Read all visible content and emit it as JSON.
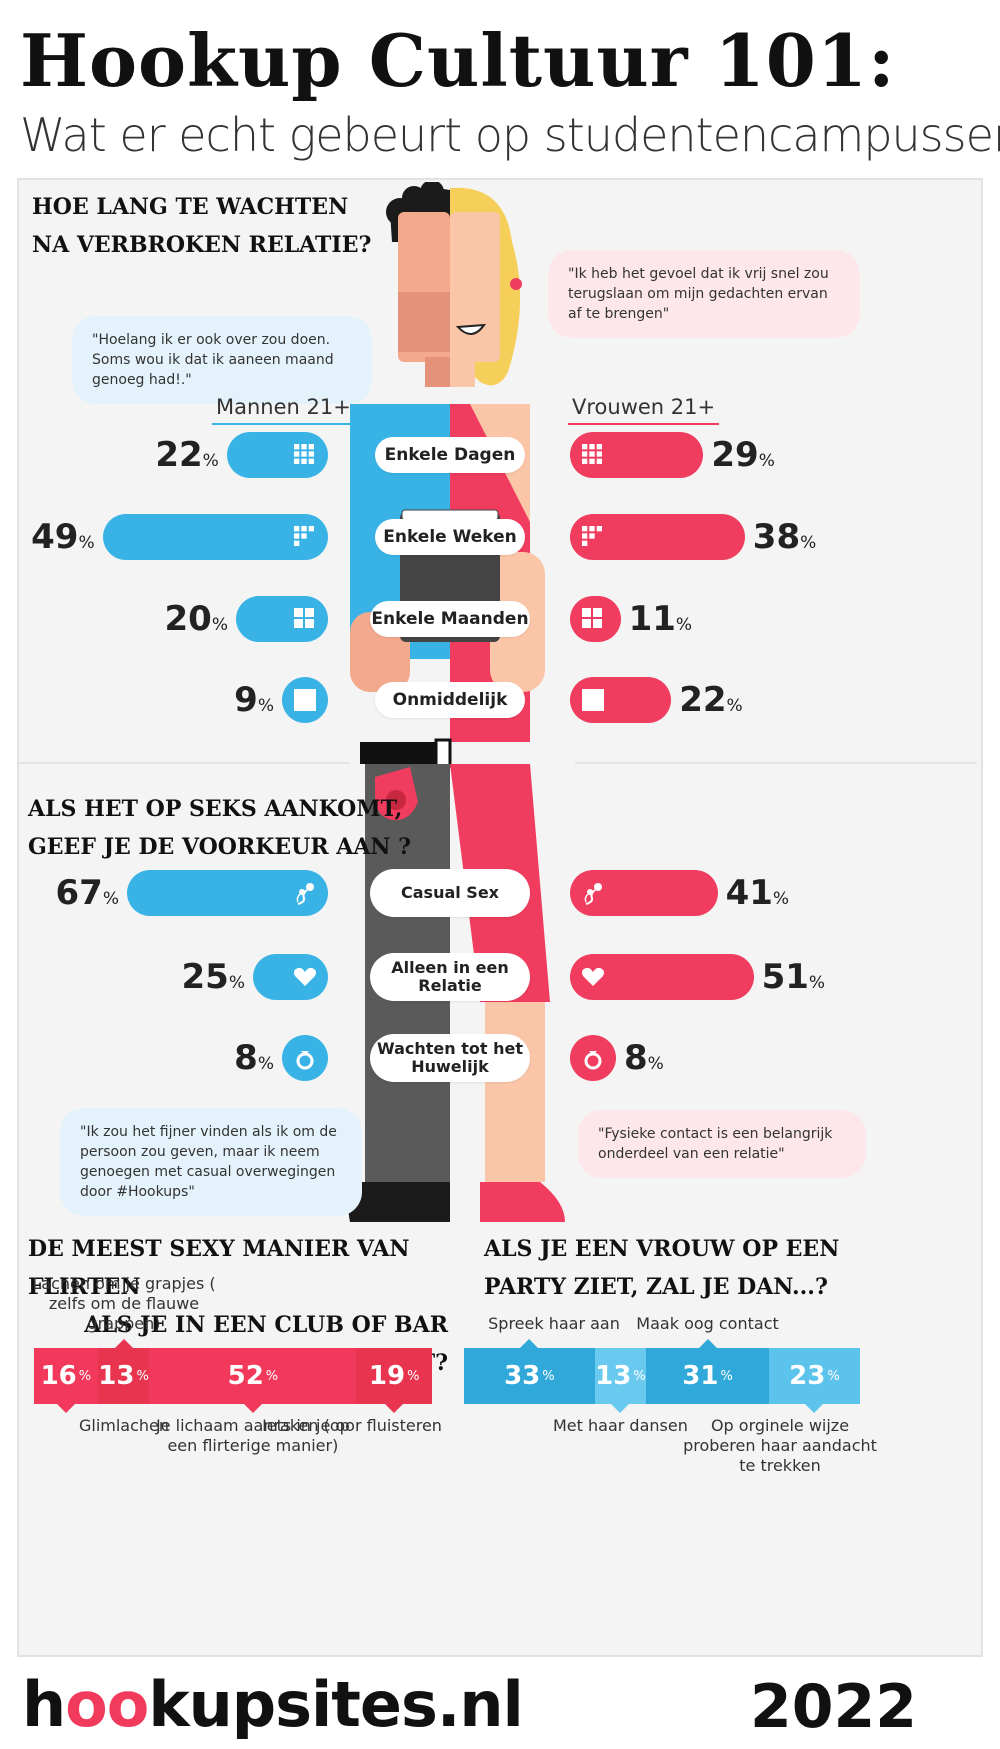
{
  "header": {
    "title": "Hookup Cultuur 101:",
    "subtitle": "Wat er echt gebeurt op studentencampussen"
  },
  "section1": {
    "title_line1": "HOE LANG TE WACHTEN",
    "title_line2": "NA VERBROKEN RELATIE?",
    "quote_men": "\"Hoelang ik er ook over zou doen. Soms wou ik dat ik aaneen maand genoeg had!.\"",
    "quote_women": "\"Ik heb het gevoel dat ik vrij snel zou terugslaan om mijn gedachten ervan af te brengen\"",
    "men_header": "Mannen 21+",
    "women_header": "Vrouwen 21+"
  },
  "section2": {
    "title_line1": "ALS HET OP SEKS AANKOMT,",
    "title_line2": "GEEF JE DE VOORKEUR AAN ?",
    "quote_men": "\"Ik zou het fijner vinden als ik om de persoon zou geven, maar ik neem genoegen met casual overwegingen door #Hookups\"",
    "quote_women": "\"Fysieke contact is een belangrijk onderdeel van een relatie\""
  },
  "section3": {
    "title_line1": "DE MEEST SEXY MANIER VAN FLIRTEN",
    "title_line2": "ALS JE IN EEN CLUB OF BAR BENT?"
  },
  "section4": {
    "title_line1": "ALS JE EEN VROUW OP EEN",
    "title_line2": "PARTY ZIET, ZAL JE DAN...?"
  },
  "percent_sign": "%",
  "footer": {
    "logo_a": "h",
    "logo_o1": "o",
    "logo_o2": "o",
    "logo_b": "kupsites.nl",
    "year": "2022"
  },
  "colors": {
    "blue": "#39b3e6",
    "pink": "#f03c5e",
    "red_stack": "#f2385b",
    "blue_stack": "#34aee0"
  },
  "chart_data": [
    {
      "type": "bar",
      "title": "HOE LANG TE WACHTEN NA VERBROKEN RELATIE?",
      "categories": [
        "Enkele Dagen",
        "Enkele Weken",
        "Enkele Maanden",
        "Onmiddelijk"
      ],
      "icons": [
        "grid-9-icon",
        "grid-partial-icon",
        "grid-4-icon",
        "square-icon"
      ],
      "series": [
        {
          "name": "Mannen 21+",
          "values": [
            22,
            49,
            20,
            9
          ]
        },
        {
          "name": "Vrouwen 21+",
          "values": [
            29,
            38,
            11,
            22
          ]
        }
      ],
      "unit": "%"
    },
    {
      "type": "bar",
      "title": "ALS HET OP SEKS AANKOMT, GEEF JE DE VOORKEUR AAN ?",
      "categories": [
        "Casual Sex",
        "Alleen in een Relatie",
        "Wachten tot het Huwelijk"
      ],
      "icons": [
        "sperm-icon",
        "heart-icon",
        "ring-icon"
      ],
      "series": [
        {
          "values": [
            67,
            25,
            8
          ]
        },
        {
          "values": [
            41,
            51,
            8
          ]
        }
      ],
      "unit": "%"
    },
    {
      "type": "bar",
      "stacked": true,
      "title": "DE MEEST SEXY MANIER VAN FLIRTEN ALS JE IN EEN CLUB OF BAR BENT?",
      "segments": [
        {
          "label": "Glimlachen",
          "value": 16,
          "label_pos": "below"
        },
        {
          "label": "Lachen om je grapjes ( zelfs om de flauwe grappen)",
          "value": 13,
          "label_pos": "above"
        },
        {
          "label": "Je lichaam aanraken (op een flirterige manier)",
          "value": 52,
          "label_pos": "below"
        },
        {
          "label": "Iets in je oor fluisteren",
          "value": 19,
          "label_pos": "below"
        }
      ],
      "unit": "%"
    },
    {
      "type": "bar",
      "stacked": true,
      "title": "ALS JE EEN VROUW OP EEN PARTY ZIET, ZAL JE DAN...?",
      "segments": [
        {
          "label": "Spreek haar aan",
          "value": 33,
          "label_pos": "above"
        },
        {
          "label": "Met haar dansen",
          "value": 13,
          "label_pos": "below"
        },
        {
          "label": "Maak oog contact",
          "value": 31,
          "label_pos": "above"
        },
        {
          "label": "Op orginele wijze proberen haar aandacht te trekken",
          "value": 23,
          "label_pos": "below"
        }
      ],
      "unit": "%"
    }
  ]
}
